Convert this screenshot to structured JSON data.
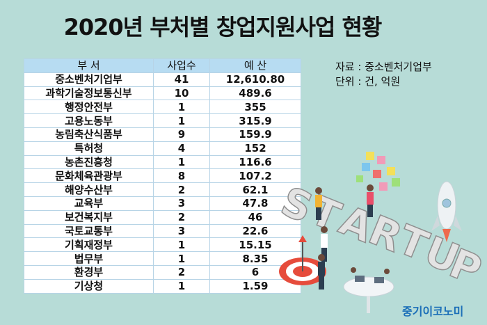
{
  "title": "2020년 부처별 창업지원사업 현황",
  "table": {
    "headers": [
      "부 서",
      "사업수",
      "예 산"
    ],
    "rows": [
      [
        "중소벤처기업부",
        "41",
        "12,610.80"
      ],
      [
        "과학기술정보통신부",
        "10",
        "489.6"
      ],
      [
        "행정안전부",
        "1",
        "355"
      ],
      [
        "고용노동부",
        "1",
        "315.9"
      ],
      [
        "농림축산식품부",
        "9",
        "159.9"
      ],
      [
        "특허청",
        "4",
        "152"
      ],
      [
        "농촌진흥청",
        "1",
        "116.6"
      ],
      [
        "문화체육관광부",
        "8",
        "107.2"
      ],
      [
        "해양수산부",
        "2",
        "62.1"
      ],
      [
        "교육부",
        "3",
        "47.8"
      ],
      [
        "보건복지부",
        "2",
        "46"
      ],
      [
        "국토교통부",
        "3",
        "22.6"
      ],
      [
        "기획재정부",
        "1",
        "15.15"
      ],
      [
        "법무부",
        "1",
        "8.35"
      ],
      [
        "환경부",
        "2",
        "6"
      ],
      [
        "기상청",
        "1",
        "1.59"
      ]
    ]
  },
  "source_note": {
    "source": "자료 : 중소벤처기업부",
    "unit": "단위 : 건, 억원"
  },
  "illustration": {
    "letters": [
      "S",
      "T",
      "A",
      "R",
      "T",
      "U",
      "P"
    ]
  },
  "brand": "중기이코노미",
  "colors": {
    "background": "#b7dcd7",
    "header": "#b7dcf2",
    "brand": "#1b6fb8"
  }
}
